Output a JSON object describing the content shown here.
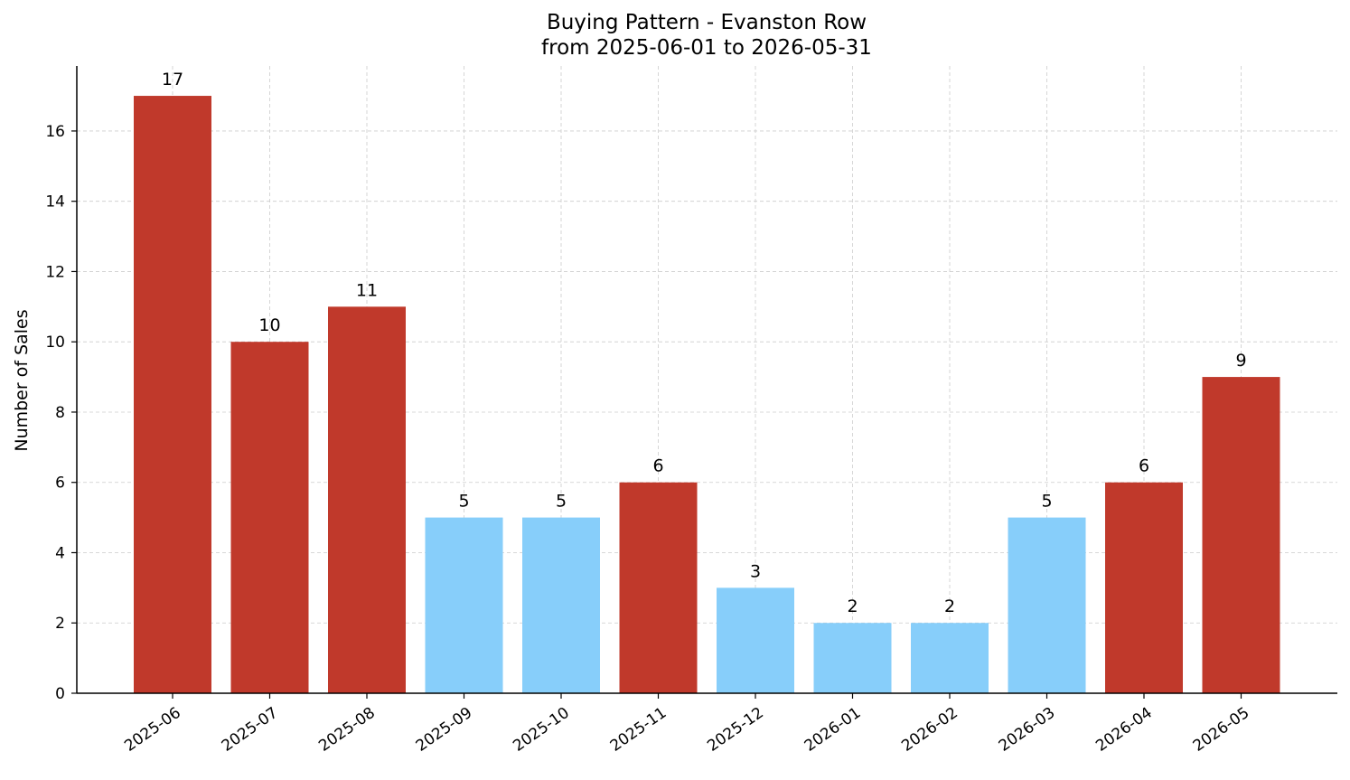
{
  "chart_data": {
    "type": "bar",
    "title": "Buying Pattern - Evanston Row",
    "subtitle": "from 2025-06-01 to 2026-05-31",
    "xlabel": "",
    "ylabel": "Number of Sales",
    "categories": [
      "2025-06",
      "2025-07",
      "2025-08",
      "2025-09",
      "2025-10",
      "2025-11",
      "2025-12",
      "2026-01",
      "2026-02",
      "2026-03",
      "2026-04",
      "2026-05"
    ],
    "values": [
      17,
      10,
      11,
      5,
      5,
      6,
      3,
      2,
      2,
      5,
      6,
      9
    ],
    "bar_colors": [
      "#c0392b",
      "#c0392b",
      "#c0392b",
      "#87cefa",
      "#87cefa",
      "#c0392b",
      "#87cefa",
      "#87cefa",
      "#87cefa",
      "#87cefa",
      "#c0392b",
      "#c0392b"
    ],
    "y_ticks": [
      0,
      2,
      4,
      6,
      8,
      10,
      12,
      14,
      16
    ],
    "ylim": [
      0,
      17.85
    ],
    "grid": true,
    "data_labels": true
  }
}
